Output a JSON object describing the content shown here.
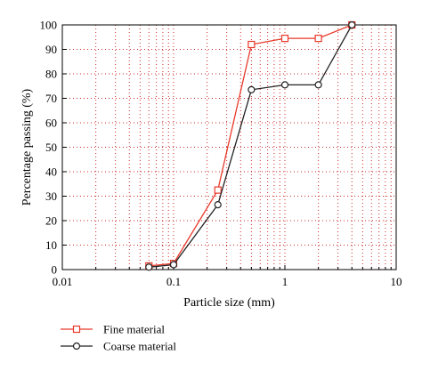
{
  "chart_data": {
    "type": "line",
    "x_scale": "log",
    "xlabel": "Particle size (mm)",
    "ylabel": "Percentage passing (%)",
    "xlim": [
      0.01,
      10
    ],
    "ylim": [
      0,
      100
    ],
    "x_ticks": [
      0.01,
      0.1,
      1,
      10
    ],
    "x_tick_labels": [
      "0.01",
      "0.1",
      "1",
      "10"
    ],
    "y_ticks": [
      0,
      10,
      20,
      30,
      40,
      50,
      60,
      70,
      80,
      90,
      100
    ],
    "y_tick_labels": [
      "0",
      "10",
      "20",
      "30",
      "40",
      "50",
      "60",
      "70",
      "80",
      "90",
      "100"
    ],
    "grid": true,
    "legend_position": "bottom",
    "series": [
      {
        "name": "Fine material",
        "color": "#e8392a",
        "marker": "square",
        "x": [
          0.06,
          0.1,
          0.25,
          0.5,
          1,
          2,
          4
        ],
        "y": [
          1.5,
          2.5,
          32.5,
          92,
          94.5,
          94.5,
          100
        ]
      },
      {
        "name": "Coarse material",
        "color": "#222222",
        "marker": "circle",
        "x": [
          0.06,
          0.1,
          0.25,
          0.5,
          1,
          2,
          4
        ],
        "y": [
          1,
          2,
          26.5,
          73.5,
          75.5,
          75.5,
          100
        ]
      }
    ]
  }
}
